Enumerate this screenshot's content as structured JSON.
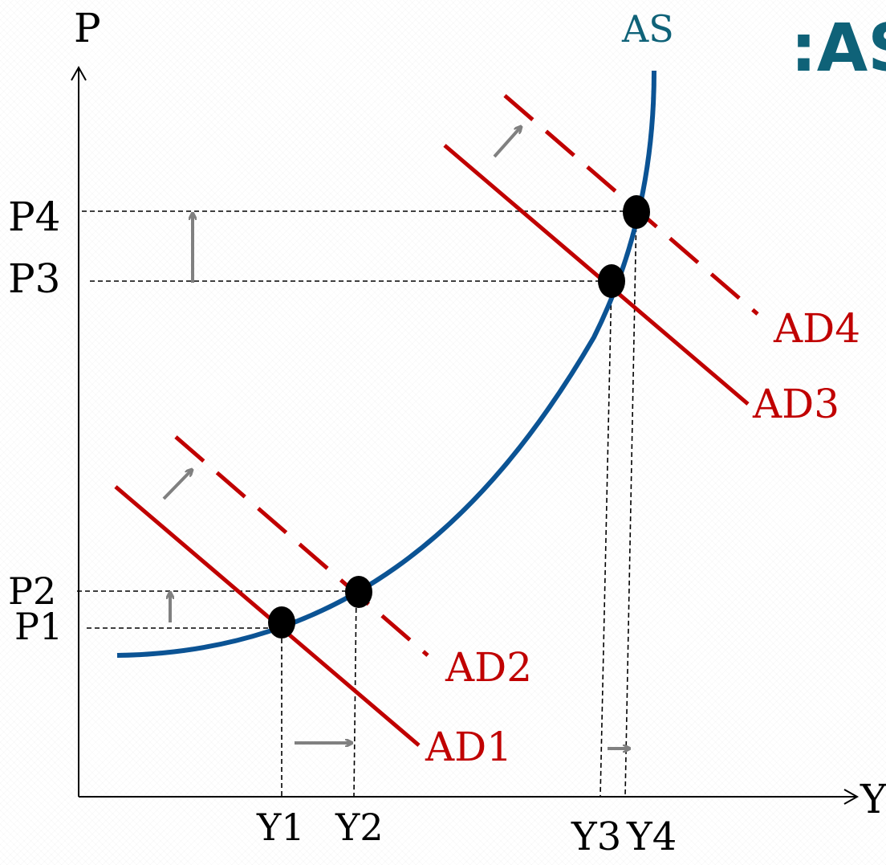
{
  "colors": {
    "axis": "#000000",
    "as_curve": "#0b5394",
    "ad_curve": "#c00000",
    "arrow": "#808080",
    "title": "#0f6278",
    "dot": "#000000",
    "guide": "#000000"
  },
  "title_text": ":AS",
  "axes": {
    "y_label": "P",
    "x_label": "Y"
  },
  "curves": {
    "as": "AS",
    "ad1": "AD1",
    "ad2": "AD2",
    "ad3": "AD3",
    "ad4": "AD4"
  },
  "price_levels": {
    "p1": "P1",
    "p2": "P2",
    "p3": "P3",
    "p4": "P4"
  },
  "output_levels": {
    "y1": "Y1",
    "y2": "Y2",
    "y3": "Y3",
    "y4": "Y4"
  }
}
